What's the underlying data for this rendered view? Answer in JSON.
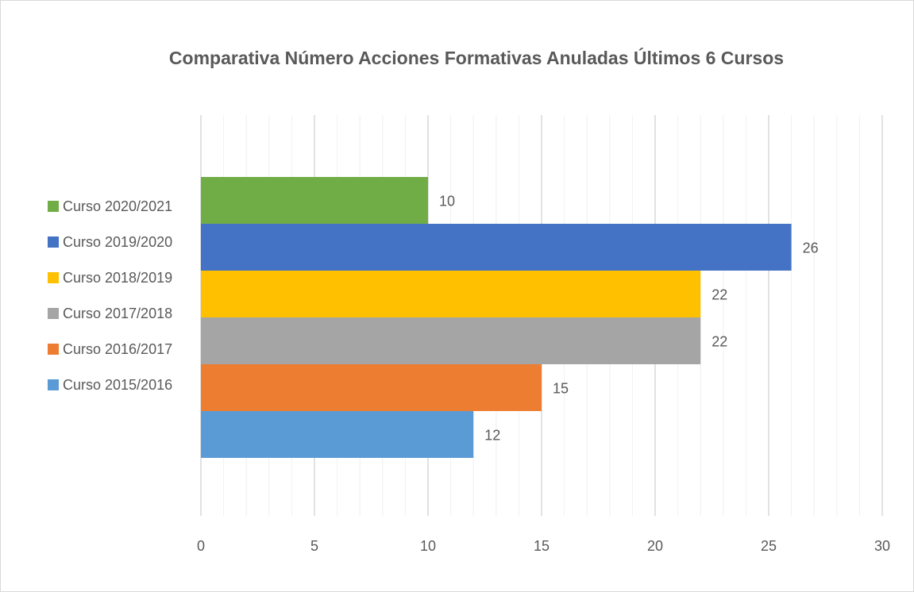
{
  "chart_data": {
    "type": "bar",
    "orientation": "horizontal",
    "title": "Comparativa Número Acciones Formativas Anuladas Últimos 6 Cursos",
    "series": [
      {
        "name": "Curso 2015/2016",
        "color": "#5b9bd5",
        "values": [
          12
        ]
      },
      {
        "name": "Curso 2016/2017",
        "color": "#ed7d31",
        "values": [
          15
        ]
      },
      {
        "name": "Curso 2017/2018",
        "color": "#a5a5a5",
        "values": [
          22
        ]
      },
      {
        "name": "Curso 2018/2019",
        "color": "#ffc000",
        "values": [
          22
        ]
      },
      {
        "name": "Curso 2019/2020",
        "color": "#4472c4",
        "values": [
          26
        ]
      },
      {
        "name": "Curso 2020/2021",
        "color": "#70ad47",
        "values": [
          10
        ]
      }
    ],
    "xlim": [
      0,
      30
    ],
    "xticks": [
      0,
      5,
      10,
      15,
      20,
      25,
      30
    ],
    "xminorticks": [
      1,
      2,
      3,
      4,
      6,
      7,
      8,
      9,
      11,
      12,
      13,
      14,
      16,
      17,
      18,
      19,
      21,
      22,
      23,
      24,
      26,
      27,
      28,
      29
    ],
    "grid": true,
    "legend": "left"
  }
}
